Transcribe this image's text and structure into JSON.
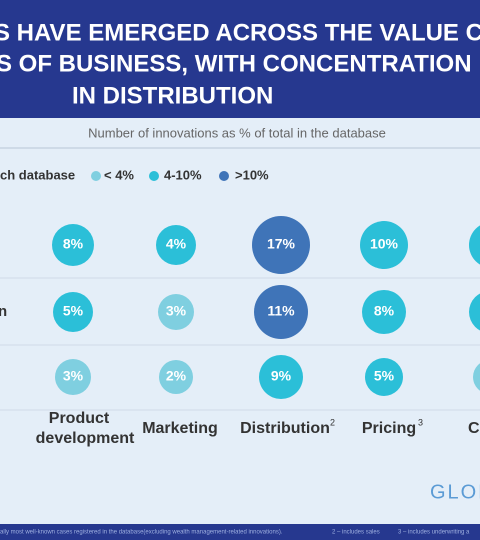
{
  "header": {
    "title_lines": [
      "S HAVE EMERGED ACROSS THE VALUE CHA",
      "S OF BUSINESS, WITH CONCENTRATION",
      "IN DISTRIBUTION"
    ]
  },
  "subtitle": "Number of innovations as % of total in the database",
  "legend": {
    "title": "ch database",
    "items": [
      "< 4%",
      "4-10%",
      ">10%"
    ]
  },
  "row_labels": [
    "n"
  ],
  "columns": [
    {
      "label": [
        "Product",
        "development"
      ]
    },
    {
      "label": [
        "Marketing"
      ]
    },
    {
      "label": [
        "Distribution"
      ],
      "sup": "2"
    },
    {
      "label": [
        "Pricing"
      ],
      "sup": "3"
    },
    {
      "label": [
        "C"
      ]
    }
  ],
  "cells": [
    [
      "8%",
      "4%",
      "17%",
      "10%"
    ],
    [
      "5%",
      "3%",
      "11%",
      "8%"
    ],
    [
      "3%",
      "2%",
      "9%",
      "5%"
    ]
  ],
  "logo": "GLOB",
  "footnotes": [
    "ally most well-known cases registered in the database(excluding wealth management-related innovations).",
    "2 – includes sales",
    "3 – includes underwriting a"
  ]
}
